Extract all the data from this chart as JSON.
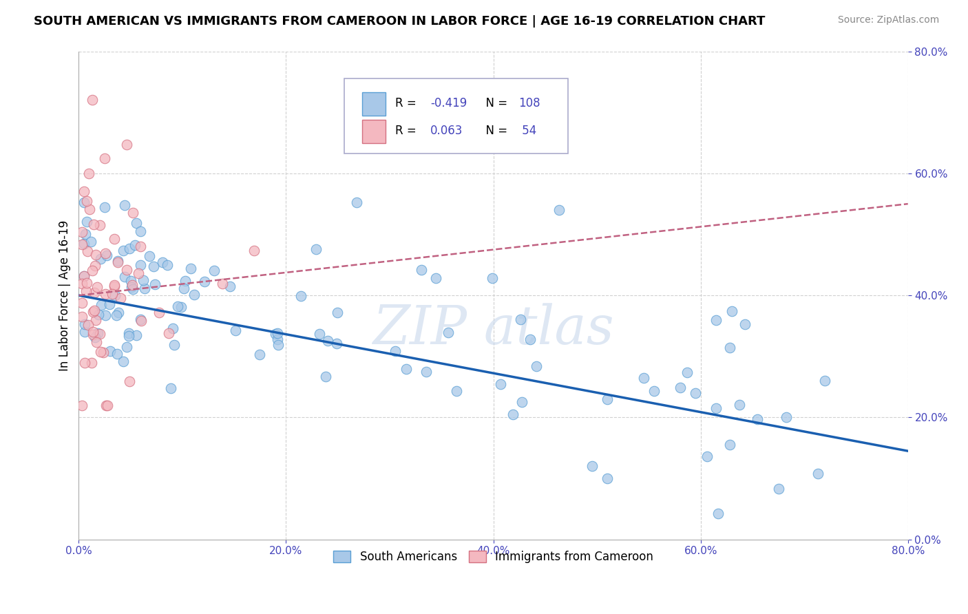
{
  "title": "SOUTH AMERICAN VS IMMIGRANTS FROM CAMEROON IN LABOR FORCE | AGE 16-19 CORRELATION CHART",
  "source": "Source: ZipAtlas.com",
  "ylabel": "In Labor Force | Age 16-19",
  "xlim": [
    0.0,
    0.8
  ],
  "ylim": [
    0.0,
    0.8
  ],
  "xtick_vals": [
    0.0,
    0.2,
    0.4,
    0.6,
    0.8
  ],
  "ytick_vals": [
    0.0,
    0.2,
    0.4,
    0.6,
    0.8
  ],
  "blue_color": "#a8c8e8",
  "blue_edge": "#5a9fd4",
  "pink_color": "#f4b8c0",
  "pink_edge": "#d47080",
  "trendline_blue": "#1a5fb0",
  "trendline_pink": "#c06080",
  "grid_color": "#d0d0d0",
  "tick_color": "#4444bb",
  "r1": "-0.419",
  "n1": "108",
  "r2": "0.063",
  "n2": "54"
}
